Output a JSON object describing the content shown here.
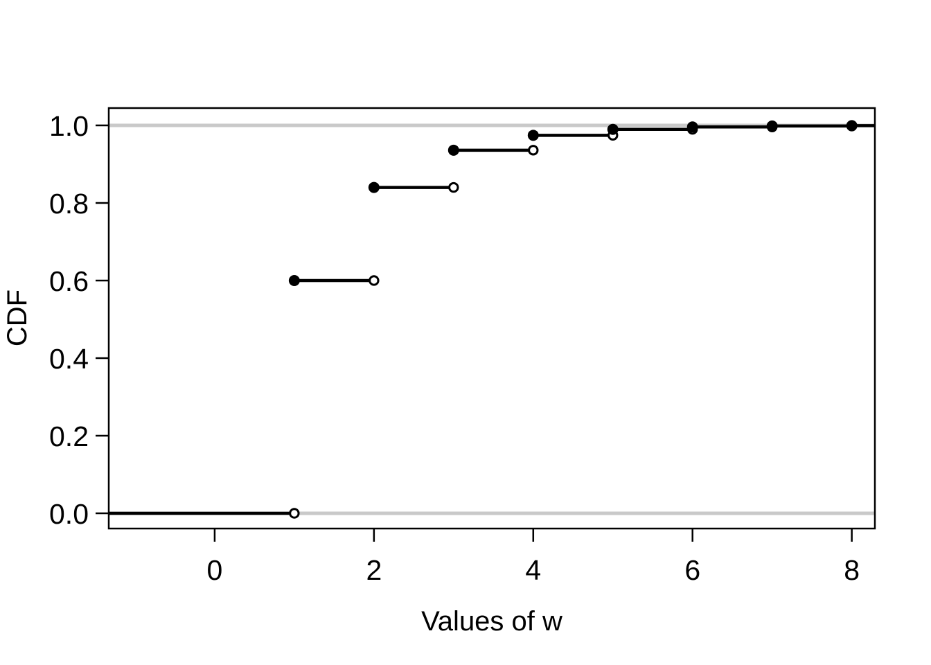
{
  "figure": {
    "background": "#ffffff"
  },
  "chart_data": {
    "type": "line",
    "subtype": "step-function-cdf",
    "title": "",
    "xlabel": "Values of w",
    "ylabel": "CDF",
    "grid": false,
    "legend": "none",
    "x_tick_values": [
      0,
      2,
      4,
      6,
      8
    ],
    "x_tick_labels": [
      "0",
      "2",
      "4",
      "6",
      "8"
    ],
    "y_tick_values": [
      0.0,
      0.2,
      0.4,
      0.6,
      0.8,
      1.0
    ],
    "y_tick_labels": [
      "0.0",
      "0.2",
      "0.4",
      "0.6",
      "0.8",
      "1.0"
    ],
    "xlim": [
      -1.33,
      8.29
    ],
    "ylim": [
      -0.0393,
      1.0446
    ],
    "colors": {
      "step_line": "#000000",
      "reference_line": "#c9c9c9",
      "marker_fill": "#000000",
      "open_marker_fill": "#ffffff",
      "axis": "#000000",
      "background": "#ffffff"
    },
    "reference_lines": [
      {
        "axis": "y",
        "value": 0.0
      },
      {
        "axis": "y",
        "value": 1.0
      }
    ],
    "jump_points": [
      {
        "w": 1,
        "cdf": 0.6
      },
      {
        "w": 2,
        "cdf": 0.84
      },
      {
        "w": 3,
        "cdf": 0.936
      },
      {
        "w": 4,
        "cdf": 0.9744
      },
      {
        "w": 5,
        "cdf": 0.9898
      },
      {
        "w": 6,
        "cdf": 0.9959
      },
      {
        "w": 7,
        "cdf": 0.9984
      },
      {
        "w": 8,
        "cdf": 0.9993
      }
    ],
    "segments": [
      {
        "x0": -1.33,
        "x1": 1,
        "y": 0.0,
        "left_marker": "none",
        "right_marker": "open"
      },
      {
        "x0": 1,
        "x1": 2,
        "y": 0.6,
        "left_marker": "filled",
        "right_marker": "open"
      },
      {
        "x0": 2,
        "x1": 3,
        "y": 0.84,
        "left_marker": "filled",
        "right_marker": "open"
      },
      {
        "x0": 3,
        "x1": 4,
        "y": 0.936,
        "left_marker": "filled",
        "right_marker": "open"
      },
      {
        "x0": 4,
        "x1": 5,
        "y": 0.9744,
        "left_marker": "filled",
        "right_marker": "open"
      },
      {
        "x0": 5,
        "x1": 6,
        "y": 0.9898,
        "left_marker": "filled",
        "right_marker": "open"
      },
      {
        "x0": 6,
        "x1": 7,
        "y": 0.9959,
        "left_marker": "filled",
        "right_marker": "open"
      },
      {
        "x0": 7,
        "x1": 8,
        "y": 0.9984,
        "left_marker": "filled",
        "right_marker": "open"
      },
      {
        "x0": 8,
        "x1": 8.29,
        "y": 0.9993,
        "left_marker": "filled",
        "right_marker": "none"
      }
    ]
  }
}
